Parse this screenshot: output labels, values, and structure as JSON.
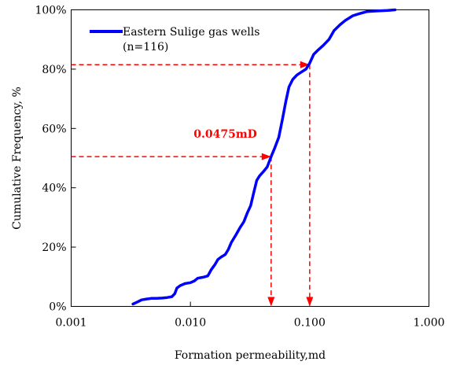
{
  "chart_data": {
    "type": "line",
    "xlabel": "Formation permeability,md",
    "ylabel": "Cumulative Frequency, %",
    "x_scale": "log",
    "xlim": [
      0.001,
      1.0
    ],
    "ylim": [
      0,
      100
    ],
    "x_ticks": [
      0.001,
      0.01,
      0.1,
      1.0
    ],
    "x_tick_labels": [
      "0.001",
      "0.010",
      "0.100",
      "1.000"
    ],
    "y_ticks": [
      0,
      20,
      40,
      60,
      80,
      100
    ],
    "y_tick_labels": [
      "0%",
      "20%",
      "40%",
      "60%",
      "80%",
      "100%"
    ],
    "grid": false,
    "legend_position": "top-left",
    "legend": {
      "line1": "Eastern Sulige gas wells",
      "line2": "(n=116)"
    },
    "series": [
      {
        "name": "Eastern Sulige gas wells",
        "color": "#0000ff",
        "points": [
          [
            0.0033,
            0.8
          ],
          [
            0.0036,
            1.5
          ],
          [
            0.0039,
            2.2
          ],
          [
            0.0043,
            2.5
          ],
          [
            0.0047,
            2.7
          ],
          [
            0.0052,
            2.7
          ],
          [
            0.0058,
            2.8
          ],
          [
            0.0064,
            3.0
          ],
          [
            0.007,
            3.3
          ],
          [
            0.0074,
            4.3
          ],
          [
            0.0077,
            6.2
          ],
          [
            0.0082,
            7.0
          ],
          [
            0.009,
            7.7
          ],
          [
            0.01,
            8.0
          ],
          [
            0.0108,
            8.6
          ],
          [
            0.0115,
            9.5
          ],
          [
            0.013,
            9.9
          ],
          [
            0.014,
            10.3
          ],
          [
            0.015,
            12.5
          ],
          [
            0.016,
            14.0
          ],
          [
            0.017,
            15.8
          ],
          [
            0.0182,
            16.7
          ],
          [
            0.0196,
            17.5
          ],
          [
            0.0208,
            19.2
          ],
          [
            0.022,
            21.5
          ],
          [
            0.024,
            24.0
          ],
          [
            0.026,
            26.5
          ],
          [
            0.028,
            28.5
          ],
          [
            0.03,
            31.5
          ],
          [
            0.032,
            34.0
          ],
          [
            0.034,
            38.5
          ],
          [
            0.036,
            42.5
          ],
          [
            0.038,
            44.0
          ],
          [
            0.041,
            45.5
          ],
          [
            0.044,
            47.0
          ],
          [
            0.0475,
            50.5
          ],
          [
            0.051,
            53.5
          ],
          [
            0.055,
            57.0
          ],
          [
            0.059,
            63.0
          ],
          [
            0.063,
            69.0
          ],
          [
            0.067,
            74.0
          ],
          [
            0.072,
            76.5
          ],
          [
            0.078,
            78.0
          ],
          [
            0.085,
            79.0
          ],
          [
            0.093,
            80.0
          ],
          [
            0.1,
            82.0
          ],
          [
            0.108,
            85.0
          ],
          [
            0.118,
            86.5
          ],
          [
            0.13,
            88.0
          ],
          [
            0.145,
            90.0
          ],
          [
            0.16,
            93.0
          ],
          [
            0.18,
            95.0
          ],
          [
            0.2,
            96.5
          ],
          [
            0.23,
            98.0
          ],
          [
            0.26,
            98.7
          ],
          [
            0.3,
            99.4
          ],
          [
            0.36,
            99.6
          ],
          [
            0.45,
            99.8
          ],
          [
            0.52,
            100.0
          ]
        ]
      }
    ],
    "annotations": [
      {
        "label": "0.0475mD",
        "x": 0.0475,
        "y": 50.5,
        "color": "#ff0000"
      },
      {
        "label": "",
        "x": 0.1,
        "y": 81.5,
        "color": "#ff0000"
      }
    ]
  }
}
